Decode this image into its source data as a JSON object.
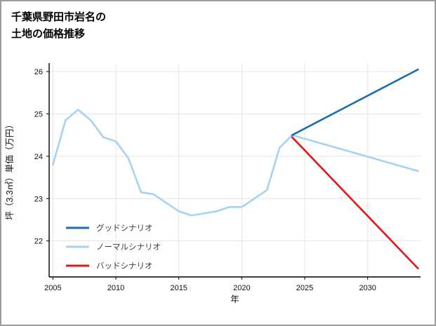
{
  "page": {
    "title_line1": "千葉県野田市岩名の",
    "title_line2": "土地の価格推移"
  },
  "chart_data": {
    "type": "line",
    "title": "千葉県野田市岩名の土地の価格推移",
    "xlabel": "年",
    "ylabel": "坪（3.3㎡）単価（万円）",
    "xlim": [
      2004.7,
      2034.2
    ],
    "ylim": [
      21.15,
      26.2
    ],
    "xticks": [
      2005,
      2010,
      2015,
      2020,
      2025,
      2030
    ],
    "yticks": [
      22,
      23,
      24,
      25,
      26
    ],
    "grid": true,
    "legend_position": "lower-left",
    "axis_color": "#000000",
    "grid_color": "#e4e4e4",
    "series": [
      {
        "key": "good",
        "name": "グッドシナリオ",
        "color": "#1a6cb5",
        "z": 2,
        "x": [
          2024,
          2034
        ],
        "y": [
          24.5,
          26.05
        ]
      },
      {
        "key": "normal",
        "name": "ノーマルシナリオ",
        "color": "#a8d2f2",
        "z": 1,
        "x": [
          2005,
          2006,
          2007,
          2008,
          2009,
          2010,
          2011,
          2012,
          2013,
          2014,
          2015,
          2016,
          2017,
          2018,
          2019,
          2020,
          2021,
          2022,
          2023,
          2024,
          2034
        ],
        "y": [
          23.8,
          24.85,
          25.1,
          24.85,
          24.45,
          24.35,
          23.95,
          23.15,
          23.1,
          22.9,
          22.7,
          22.6,
          22.65,
          22.7,
          22.8,
          22.8,
          23.0,
          23.2,
          24.2,
          24.5,
          23.65
        ]
      },
      {
        "key": "bad",
        "name": "バッドシナリオ",
        "color": "#e81414",
        "z": 3,
        "x": [
          2024,
          2034
        ],
        "y": [
          24.45,
          21.35
        ]
      }
    ]
  }
}
